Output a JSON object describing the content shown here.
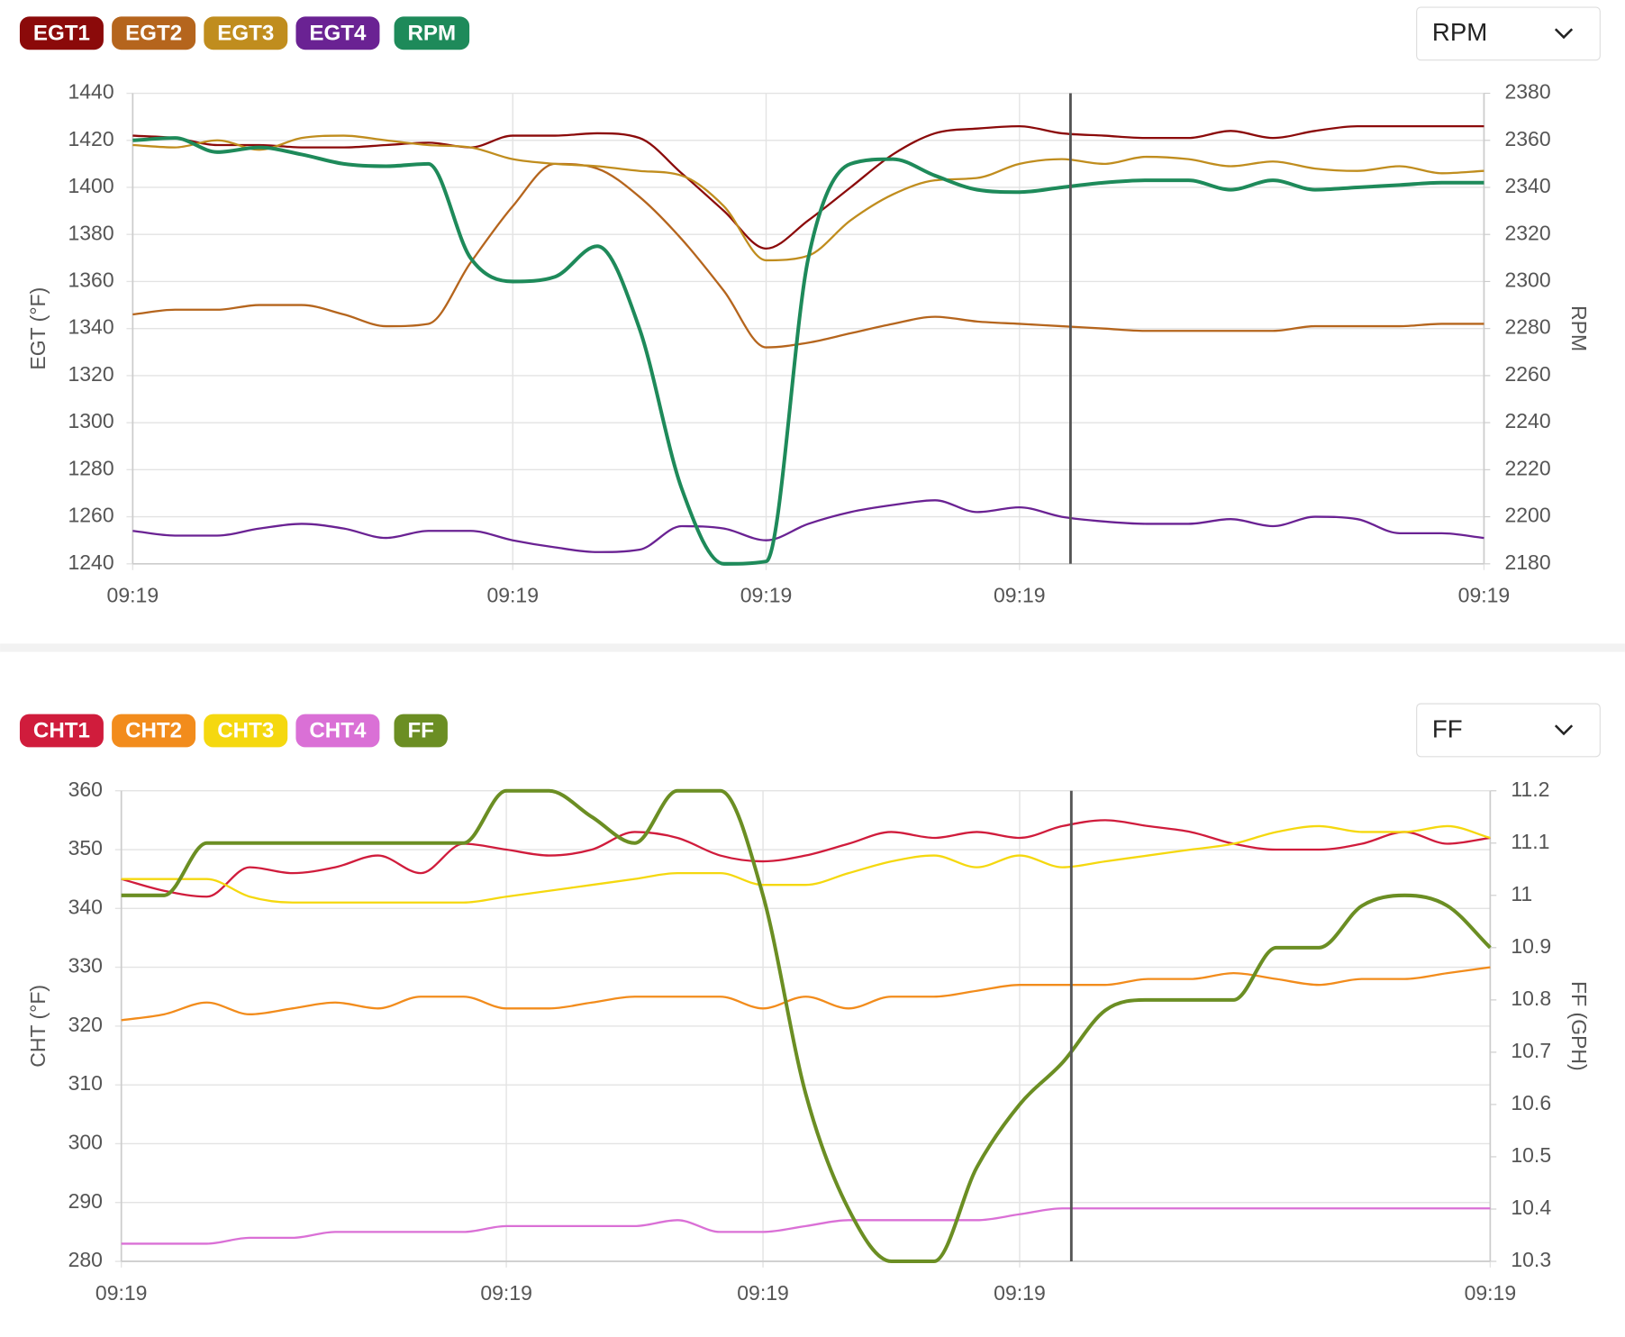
{
  "chart_data": [
    {
      "type": "line",
      "dropdown": "RPM",
      "y_label": "EGT (°F)",
      "y2_label": "RPM",
      "categories": [
        "09:19",
        null,
        null,
        null,
        null,
        null,
        null,
        null,
        null,
        "09:19",
        null,
        null,
        null,
        null,
        null,
        "09:19",
        null,
        null,
        null,
        null,
        null,
        "09:19",
        null,
        null,
        null,
        null,
        null,
        null,
        null,
        null,
        null,
        null,
        "09:19"
      ],
      "ylim": [
        1240,
        1440
      ],
      "yticks": [
        1240,
        1260,
        1280,
        1300,
        1320,
        1340,
        1360,
        1380,
        1400,
        1420,
        1440
      ],
      "y2lim": [
        2180,
        2380
      ],
      "y2ticks": [
        2180,
        2200,
        2220,
        2240,
        2260,
        2280,
        2300,
        2320,
        2340,
        2360,
        2380
      ],
      "grid": true,
      "series": [
        {
          "name": "EGT1",
          "color": "#8b0a0a",
          "values": [
            1422,
            1421,
            1418,
            1418,
            1417,
            1417,
            1418,
            1419,
            1417,
            1422,
            1422,
            1423,
            1421,
            1406,
            1390,
            1374,
            1386,
            1400,
            1414,
            1423,
            1425,
            1426,
            1423,
            1422,
            1421,
            1421,
            1424,
            1421,
            1424,
            1426,
            1426,
            1426,
            1426
          ]
        },
        {
          "name": "EGT2",
          "color": "#b5651d",
          "values": [
            1346,
            1348,
            1348,
            1350,
            1350,
            1346,
            1341,
            1342,
            1368,
            1392,
            1410,
            1408,
            1396,
            1378,
            1356,
            1332,
            1334,
            1338,
            1342,
            1345,
            1343,
            1342,
            1341,
            1340,
            1339,
            1339,
            1339,
            1339,
            1341,
            1341,
            1341,
            1342,
            1342
          ]
        },
        {
          "name": "EGT3",
          "color": "#c08d1e",
          "values": [
            1418,
            1417,
            1420,
            1416,
            1421,
            1422,
            1420,
            1418,
            1417,
            1412,
            1410,
            1409,
            1407,
            1405,
            1392,
            1369,
            1371,
            1386,
            1397,
            1403,
            1404,
            1410,
            1412,
            1410,
            1413,
            1412,
            1409,
            1411,
            1408,
            1407,
            1409,
            1406,
            1407
          ]
        },
        {
          "name": "EGT4",
          "color": "#6a2293",
          "values": [
            1254,
            1252,
            1252,
            1255,
            1257,
            1255,
            1251,
            1254,
            1254,
            1250,
            1247,
            1245,
            1246,
            1256,
            1255,
            1250,
            1257,
            1262,
            1265,
            1267,
            1262,
            1264,
            1260,
            1258,
            1257,
            1257,
            1259,
            1256,
            1260,
            1259,
            1253,
            1253,
            1251
          ]
        },
        {
          "name": "RPM",
          "color": "#1e8a5a",
          "axis": "y2",
          "values": [
            2360,
            2361,
            2355,
            2357,
            2354,
            2350,
            2349,
            2350,
            2310,
            2300,
            2302,
            2315,
            2280,
            2212,
            2180,
            2181,
            2310,
            2350,
            2352,
            2345,
            2339,
            2338,
            2340,
            2342,
            2343,
            2343,
            2339,
            2343,
            2339,
            2340,
            2341,
            2342,
            2342
          ]
        }
      ]
    },
    {
      "type": "line",
      "dropdown": "FF",
      "y_label": "CHT (°F)",
      "y2_label": "FF (GPH)",
      "categories": [
        "09:19",
        null,
        null,
        null,
        null,
        null,
        null,
        null,
        null,
        "09:19",
        null,
        null,
        null,
        null,
        null,
        "09:19",
        null,
        null,
        null,
        null,
        null,
        "09:19",
        null,
        null,
        null,
        null,
        null,
        null,
        null,
        null,
        null,
        null,
        "09:19"
      ],
      "ylim": [
        280,
        360
      ],
      "yticks": [
        280,
        290,
        300,
        310,
        320,
        330,
        340,
        350,
        360
      ],
      "y2lim": [
        10.3,
        11.2
      ],
      "y2ticks": [
        10.3,
        10.4,
        10.5,
        10.6,
        10.7,
        10.8,
        10.9,
        11,
        11.1,
        11.2
      ],
      "grid": true,
      "series": [
        {
          "name": "CHT1",
          "color": "#d01c3c",
          "values": [
            345,
            343,
            342,
            347,
            346,
            347,
            349,
            346,
            351,
            350,
            349,
            350,
            353,
            352,
            349,
            348,
            349,
            351,
            353,
            352,
            353,
            352,
            354,
            355,
            354,
            353,
            351,
            350,
            350,
            351,
            353,
            351,
            352
          ]
        },
        {
          "name": "CHT2",
          "color": "#f28c1c",
          "values": [
            321,
            322,
            324,
            322,
            323,
            324,
            323,
            325,
            325,
            323,
            323,
            324,
            325,
            325,
            325,
            323,
            325,
            323,
            325,
            325,
            326,
            327,
            327,
            327,
            328,
            328,
            329,
            328,
            327,
            328,
            328,
            329,
            330
          ]
        },
        {
          "name": "CHT3",
          "color": "#f5d80f",
          "values": [
            345,
            345,
            345,
            342,
            341,
            341,
            341,
            341,
            341,
            342,
            343,
            344,
            345,
            346,
            346,
            344,
            344,
            346,
            348,
            349,
            347,
            349,
            347,
            348,
            349,
            350,
            351,
            353,
            354,
            353,
            353,
            354,
            352
          ]
        },
        {
          "name": "CHT4",
          "color": "#da70d6",
          "values": [
            283,
            283,
            283,
            284,
            284,
            285,
            285,
            285,
            285,
            286,
            286,
            286,
            286,
            287,
            285,
            285,
            286,
            287,
            287,
            287,
            287,
            288,
            289,
            289,
            289,
            289,
            289,
            289,
            289,
            289,
            289,
            289,
            289
          ]
        },
        {
          "name": "FF",
          "color": "#6b8e23",
          "axis": "y2",
          "values": [
            11.0,
            11.0,
            11.1,
            11.1,
            11.1,
            11.1,
            11.1,
            11.1,
            11.1,
            11.2,
            11.2,
            11.15,
            11.1,
            11.2,
            11.2,
            11.0,
            10.62,
            10.4,
            10.3,
            10.3,
            10.48,
            10.6,
            10.68,
            10.78,
            10.8,
            10.8,
            10.8,
            10.9,
            10.9,
            10.98,
            11.0,
            10.98,
            10.9
          ]
        }
      ]
    }
  ]
}
